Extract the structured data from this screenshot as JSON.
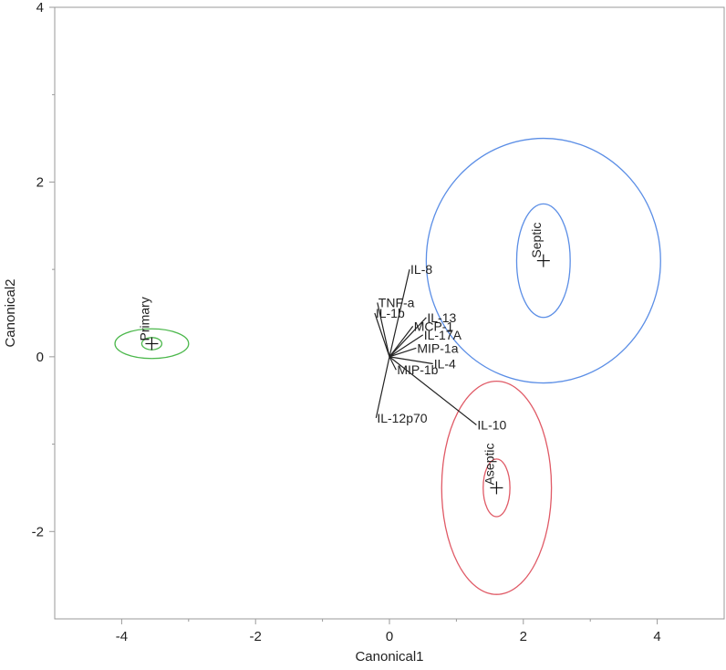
{
  "chart_data": {
    "type": "scatter",
    "title": "",
    "xlabel": "Canonical1",
    "ylabel": "Canonical2",
    "xlim": [
      -5,
      5
    ],
    "ylim": [
      -3,
      4
    ],
    "x_ticks": [
      -4,
      -2,
      0,
      2,
      4
    ],
    "y_ticks": [
      -2,
      0,
      2,
      4
    ],
    "grid": false,
    "groups": [
      {
        "name": "Primary",
        "color": "#4cb84c",
        "center": [
          -3.55,
          0.15
        ],
        "inner_radii": [
          0.15,
          0.07
        ],
        "outer_radii": [
          0.55,
          0.17
        ]
      },
      {
        "name": "Septic",
        "color": "#5b8ee6",
        "center": [
          2.3,
          1.1
        ],
        "inner_radii": [
          0.4,
          0.65
        ],
        "outer_radii": [
          1.75,
          1.4
        ]
      },
      {
        "name": "Aseptic",
        "color": "#e05a66",
        "center": [
          1.6,
          -1.5
        ],
        "inner_radii": [
          0.2,
          0.33
        ],
        "outer_radii": [
          0.82,
          1.22
        ]
      }
    ],
    "biplot_origin": [
      0,
      0
    ],
    "biplot_vectors": [
      {
        "name": "IL-8",
        "x": 0.3,
        "y": 1.0
      },
      {
        "name": "TNF-a",
        "x": -0.18,
        "y": 0.62
      },
      {
        "name": "IL-1b",
        "x": -0.22,
        "y": 0.5
      },
      {
        "name": "IL-13",
        "x": 0.55,
        "y": 0.45
      },
      {
        "name": "MCP-1",
        "x": 0.35,
        "y": 0.35
      },
      {
        "name": "IL-17A",
        "x": 0.5,
        "y": 0.25
      },
      {
        "name": "MIP-1a",
        "x": 0.4,
        "y": 0.1
      },
      {
        "name": "IL-4",
        "x": 0.65,
        "y": -0.08
      },
      {
        "name": "MIP-1b",
        "x": 0.1,
        "y": -0.15
      },
      {
        "name": "IL-12p70",
        "x": -0.2,
        "y": -0.7
      },
      {
        "name": "IL-10",
        "x": 1.3,
        "y": -0.78
      }
    ]
  }
}
